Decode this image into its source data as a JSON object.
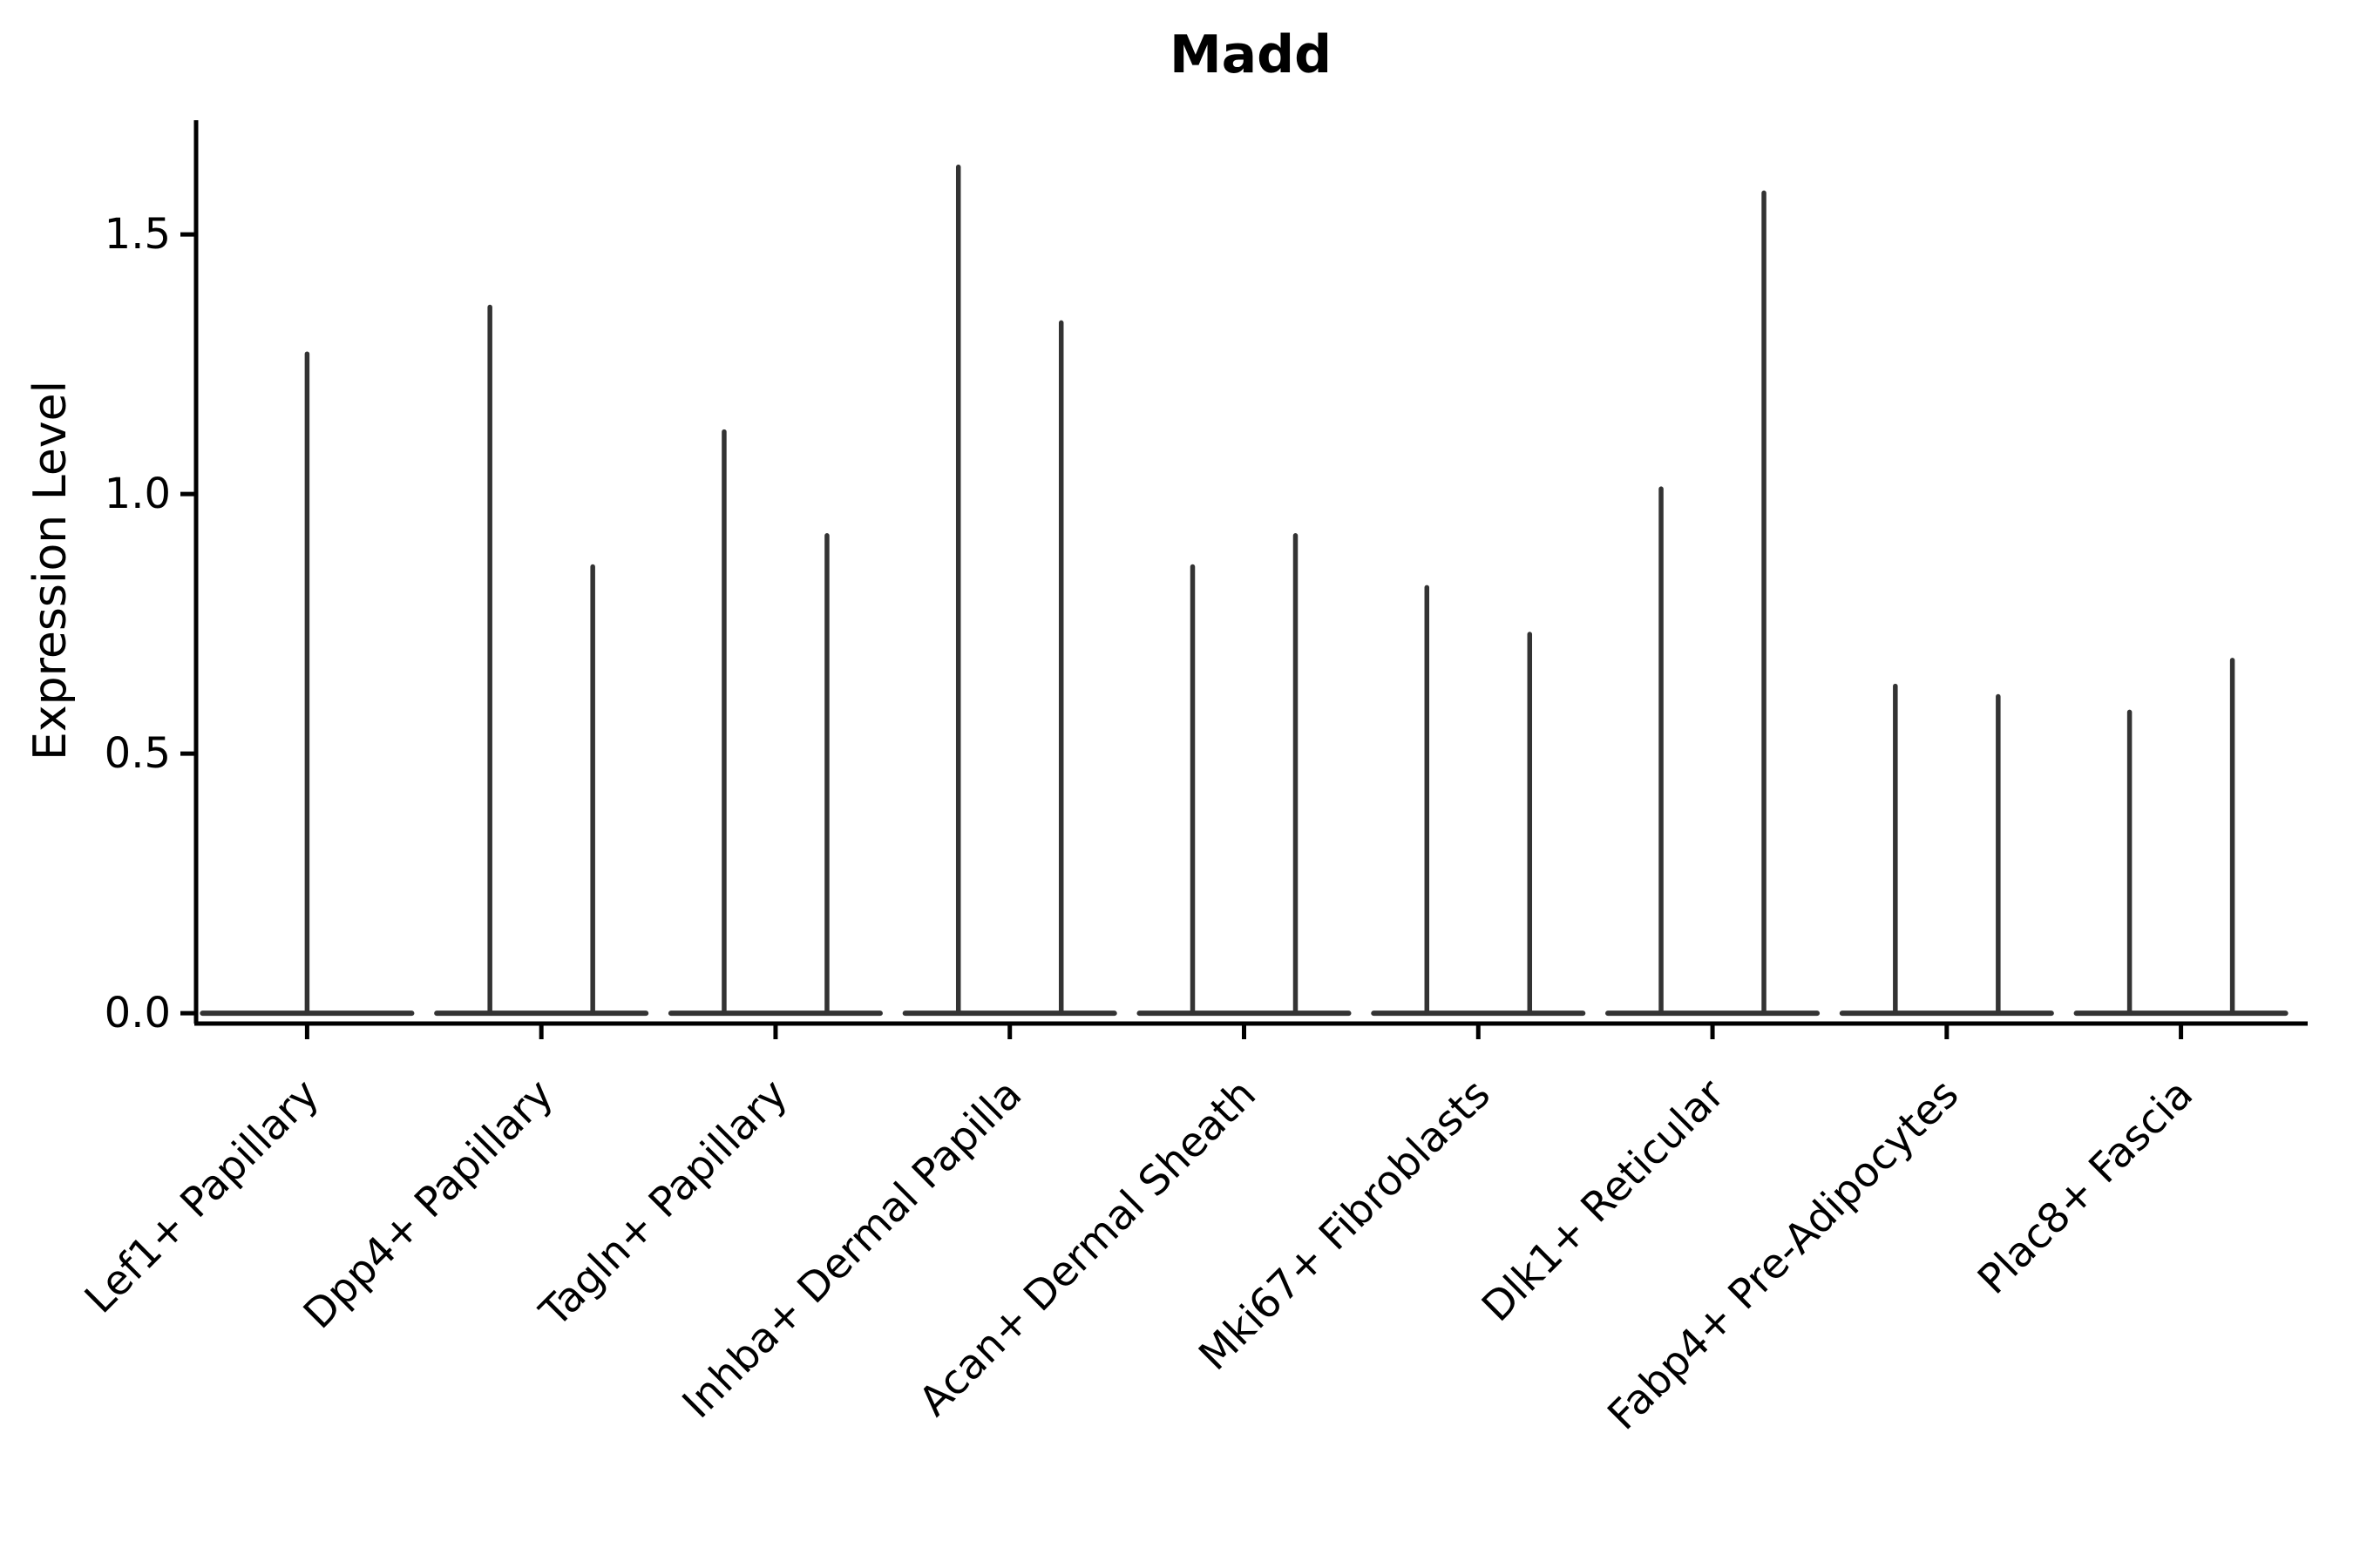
{
  "figure": {
    "background": "#ffffff",
    "violin_color": "#333333",
    "axis_color": "#000000",
    "text_color": "#000000"
  },
  "chart_data": {
    "type": "violin",
    "title": "Madd",
    "xlabel": "",
    "ylabel": "Expression Level",
    "legend": "none",
    "grid": "off",
    "ylim": [
      -0.02,
      1.72
    ],
    "yticks": [
      "0.0",
      "0.5",
      "1.0",
      "1.5"
    ],
    "ytick_values": [
      0.0,
      0.5,
      1.0,
      1.5
    ],
    "categories": [
      "Lef1+ Papillary",
      "Dpp4+ Papillary",
      "Tagln+ Papillary",
      "Inhba+ Dermal Papilla",
      "Acan+ Dermal Sheath",
      "Mki67+ Fibroblasts",
      "Dlk1+ Reticular",
      "Fabp4+ Pre-Adipocytes",
      "Plac8+ Fascia"
    ],
    "violins": [
      {
        "category": "Lef1+ Papillary",
        "spikes": [
          {
            "dodge": 0,
            "max": 1.27
          }
        ]
      },
      {
        "category": "Dpp4+ Papillary",
        "spikes": [
          {
            "dodge": -1,
            "max": 1.36
          },
          {
            "dodge": 1,
            "max": 0.86
          }
        ]
      },
      {
        "category": "Tagln+ Papillary",
        "spikes": [
          {
            "dodge": -1,
            "max": 1.12
          },
          {
            "dodge": 1,
            "max": 0.92
          }
        ]
      },
      {
        "category": "Inhba+ Dermal Papilla",
        "spikes": [
          {
            "dodge": -1,
            "max": 1.63
          },
          {
            "dodge": 1,
            "max": 1.33
          }
        ]
      },
      {
        "category": "Acan+ Dermal Sheath",
        "spikes": [
          {
            "dodge": -1,
            "max": 0.86
          },
          {
            "dodge": 1,
            "max": 0.92
          }
        ]
      },
      {
        "category": "Mki67+ Fibroblasts",
        "spikes": [
          {
            "dodge": -1,
            "max": 0.82
          },
          {
            "dodge": 1,
            "max": 0.73
          }
        ]
      },
      {
        "category": "Dlk1+ Reticular",
        "spikes": [
          {
            "dodge": -1,
            "max": 1.01
          },
          {
            "dodge": 1,
            "max": 1.58
          }
        ]
      },
      {
        "category": "Fabp4+ Pre-Adipocytes",
        "spikes": [
          {
            "dodge": -1,
            "max": 0.63
          },
          {
            "dodge": 1,
            "max": 0.61
          }
        ]
      },
      {
        "category": "Plac8+ Fascia",
        "spikes": [
          {
            "dodge": -1,
            "max": 0.58
          },
          {
            "dodge": 1,
            "max": 0.68
          }
        ]
      }
    ],
    "notes": "Expression density concentrated at 0 (wide flat base at y=0) with thin spikes up to the per-group maximum."
  }
}
